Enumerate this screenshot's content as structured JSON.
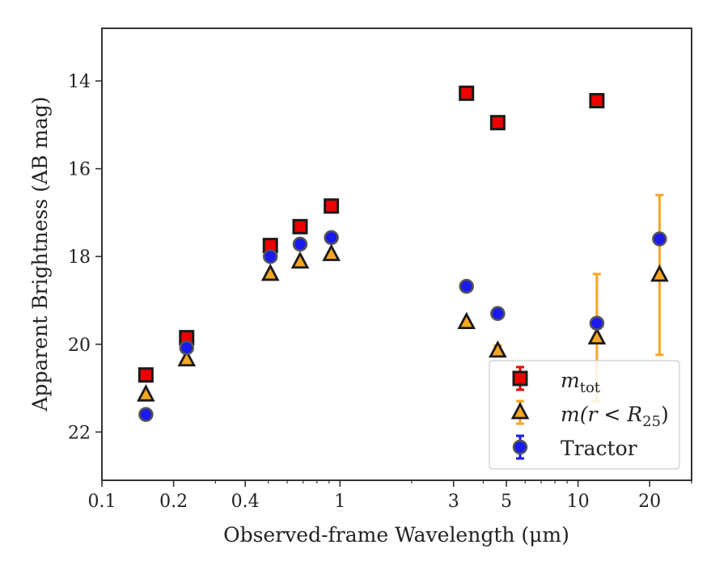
{
  "chart_data": {
    "type": "scatter",
    "xlabel": "Observed-frame Wavelength (μm)",
    "ylabel": "Apparent Brightness (AB mag)",
    "x_scale": "log",
    "xlim": [
      0.1,
      30
    ],
    "ylim": [
      23.1,
      12.8
    ],
    "y_inverted": true,
    "x_ticks": [
      {
        "value": 0.1,
        "label": "0.1"
      },
      {
        "value": 0.2,
        "label": "0.2"
      },
      {
        "value": 0.4,
        "label": "0.4"
      },
      {
        "value": 1,
        "label": "1"
      },
      {
        "value": 3,
        "label": "3"
      },
      {
        "value": 5,
        "label": "5"
      },
      {
        "value": 10,
        "label": "10"
      },
      {
        "value": 20,
        "label": "20"
      }
    ],
    "y_ticks": [
      {
        "value": 14,
        "label": "14"
      },
      {
        "value": 16,
        "label": "16"
      },
      {
        "value": 18,
        "label": "18"
      },
      {
        "value": 20,
        "label": "20"
      },
      {
        "value": 22,
        "label": "22"
      }
    ],
    "grid": false,
    "legend_position": "lower-right",
    "series": [
      {
        "name": "m_tot",
        "label_main": "m",
        "label_sub": "tot",
        "marker": "square",
        "color": "#ee0000",
        "edge": "#1a1a1a",
        "points": [
          {
            "x": 0.153,
            "y": 20.7,
            "err": 0.05
          },
          {
            "x": 0.227,
            "y": 19.85,
            "err": 0.05
          },
          {
            "x": 0.51,
            "y": 17.75,
            "err": 0.05
          },
          {
            "x": 0.68,
            "y": 17.32,
            "err": 0.05
          },
          {
            "x": 0.92,
            "y": 16.85,
            "err": 0.05
          },
          {
            "x": 3.4,
            "y": 14.28,
            "err": 0.05
          },
          {
            "x": 4.6,
            "y": 14.95,
            "err": 0.05
          },
          {
            "x": 12.0,
            "y": 14.45,
            "err": 0.05
          }
        ]
      },
      {
        "name": "m(r < R_25)",
        "label_main": "m(r < R",
        "label_sub": "25",
        "label_tail": ")",
        "marker": "triangle",
        "color": "#f5a623",
        "edge": "#1a1a1a",
        "points": [
          {
            "x": 0.153,
            "y": 21.15,
            "err": 0.05
          },
          {
            "x": 0.227,
            "y": 20.35,
            "err": 0.05
          },
          {
            "x": 0.51,
            "y": 18.4,
            "err": 0.05
          },
          {
            "x": 0.68,
            "y": 18.12,
            "err": 0.05
          },
          {
            "x": 0.92,
            "y": 17.95,
            "err": 0.05
          },
          {
            "x": 3.4,
            "y": 19.5,
            "err": 0.05
          },
          {
            "x": 4.6,
            "y": 20.15,
            "err": 0.12
          },
          {
            "x": 12.0,
            "y": 19.85,
            "err": 1.45
          },
          {
            "x": 22.0,
            "y": 18.42,
            "err": 1.82
          }
        ]
      },
      {
        "name": "Tractor",
        "label_main": "Tractor",
        "marker": "circle",
        "color": "#1a1aee",
        "edge": "#555555",
        "points": [
          {
            "x": 0.153,
            "y": 21.6,
            "err": 0.05
          },
          {
            "x": 0.227,
            "y": 20.08,
            "err": 0.05
          },
          {
            "x": 0.51,
            "y": 18.0,
            "err": 0.05
          },
          {
            "x": 0.68,
            "y": 17.72,
            "err": 0.05
          },
          {
            "x": 0.92,
            "y": 17.57,
            "err": 0.05
          },
          {
            "x": 3.4,
            "y": 18.68,
            "err": 0.05
          },
          {
            "x": 4.6,
            "y": 19.3,
            "err": 0.05
          },
          {
            "x": 12.0,
            "y": 19.52,
            "err": 0.05
          },
          {
            "x": 22.0,
            "y": 17.6,
            "err": 0.05
          }
        ]
      }
    ]
  }
}
